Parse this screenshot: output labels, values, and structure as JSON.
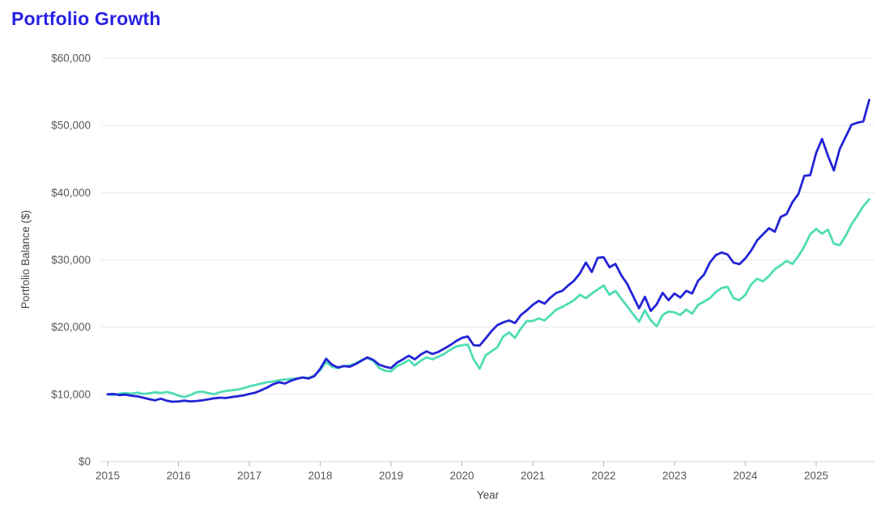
{
  "page": {
    "title": "Portfolio Growth"
  },
  "chart_data": {
    "type": "line",
    "title": "Portfolio Growth",
    "xlabel": "Year",
    "ylabel": "Portfolio Balance ($)",
    "legend": "none",
    "grid": "horizontal",
    "ylim": [
      0,
      60000
    ],
    "y_ticks": [
      0,
      10000,
      20000,
      30000,
      40000,
      50000,
      60000
    ],
    "y_tick_labels": [
      "$0",
      "$10,000",
      "$20,000",
      "$30,000",
      "$40,000",
      "$50,000",
      "$60,000"
    ],
    "x_tick_labels": [
      "2015",
      "2016",
      "2017",
      "2018",
      "2019",
      "2020",
      "2021",
      "2022",
      "2023",
      "2024",
      "2025"
    ],
    "x_start_year": 2015,
    "points_per_year": 12,
    "x_start": "2015-01",
    "x_end": "2025-10",
    "series": [
      {
        "name": "blue",
        "color": "#2323d6",
        "values": [
          10000,
          10050,
          9900,
          9950,
          9800,
          9700,
          9500,
          9300,
          9100,
          9350,
          9050,
          8900,
          8950,
          9050,
          8950,
          9000,
          9100,
          9250,
          9400,
          9500,
          9450,
          9600,
          9700,
          9850,
          10050,
          10250,
          10600,
          11000,
          11500,
          11800,
          11600,
          12000,
          12300,
          12500,
          12350,
          12700,
          13800,
          15300,
          14400,
          14000,
          14200,
          14100,
          14500,
          15000,
          15500,
          15100,
          14400,
          14100,
          13900,
          14700,
          15200,
          15750,
          15200,
          15900,
          16400,
          16000,
          16300,
          16800,
          17300,
          17900,
          18400,
          18600,
          17300,
          17250,
          18300,
          19400,
          20300,
          20700,
          21000,
          20600,
          21800,
          22500,
          23300,
          23900,
          23500,
          24400,
          25100,
          25400,
          26200,
          26900,
          28000,
          29600,
          28200,
          30300,
          30400,
          28900,
          29400,
          27700,
          26400,
          24600,
          22800,
          24500,
          22400,
          23400,
          25100,
          24000,
          25000,
          24400,
          25400,
          25000,
          26900,
          27800,
          29600,
          30700,
          31100,
          30800,
          29600,
          29350,
          30200,
          31400,
          32900,
          33800,
          34700,
          34200,
          36400,
          36800,
          38600,
          39800,
          42500,
          42600,
          45900,
          48000,
          45500,
          43300,
          46500,
          48300,
          50100,
          50400,
          50600,
          53800
        ]
      },
      {
        "name": "teal",
        "color": "#4fdcb4",
        "values": [
          10000,
          9900,
          10100,
          10200,
          10100,
          10250,
          10050,
          10150,
          10300,
          10200,
          10350,
          10150,
          9800,
          9600,
          9900,
          10300,
          10400,
          10200,
          10000,
          10300,
          10500,
          10600,
          10700,
          10900,
          11200,
          11400,
          11600,
          11800,
          11900,
          12100,
          12200,
          12300,
          12350,
          12500,
          12450,
          12800,
          13600,
          14800,
          14100,
          13900,
          14200,
          14300,
          14600,
          15100,
          15400,
          15000,
          13900,
          13500,
          13400,
          14200,
          14600,
          15100,
          14300,
          15000,
          15500,
          15200,
          15600,
          16000,
          16600,
          17100,
          17300,
          17400,
          15200,
          13800,
          15800,
          16400,
          17000,
          18600,
          19200,
          18400,
          19800,
          20900,
          20900,
          21300,
          21000,
          21800,
          22600,
          23000,
          23500,
          24000,
          24800,
          24300,
          25000,
          25600,
          26200,
          24800,
          25400,
          24200,
          23100,
          21900,
          20800,
          22500,
          21000,
          20100,
          21800,
          22300,
          22200,
          21800,
          22600,
          22000,
          23300,
          23800,
          24300,
          25200,
          25800,
          26000,
          24300,
          24000,
          24800,
          26350,
          27200,
          26800,
          27600,
          28600,
          29200,
          29850,
          29400,
          30550,
          32000,
          33800,
          34600,
          33900,
          34500,
          32400,
          32200,
          33600,
          35300,
          36600,
          38000,
          39000
        ]
      }
    ]
  },
  "colors": {
    "title": "#2722e3",
    "gridline": "#e8e8e8",
    "axis_line": "#dadada",
    "tick_mark": "#b3b3b3",
    "tick_text": "#55585c",
    "background": "#ffffff"
  }
}
